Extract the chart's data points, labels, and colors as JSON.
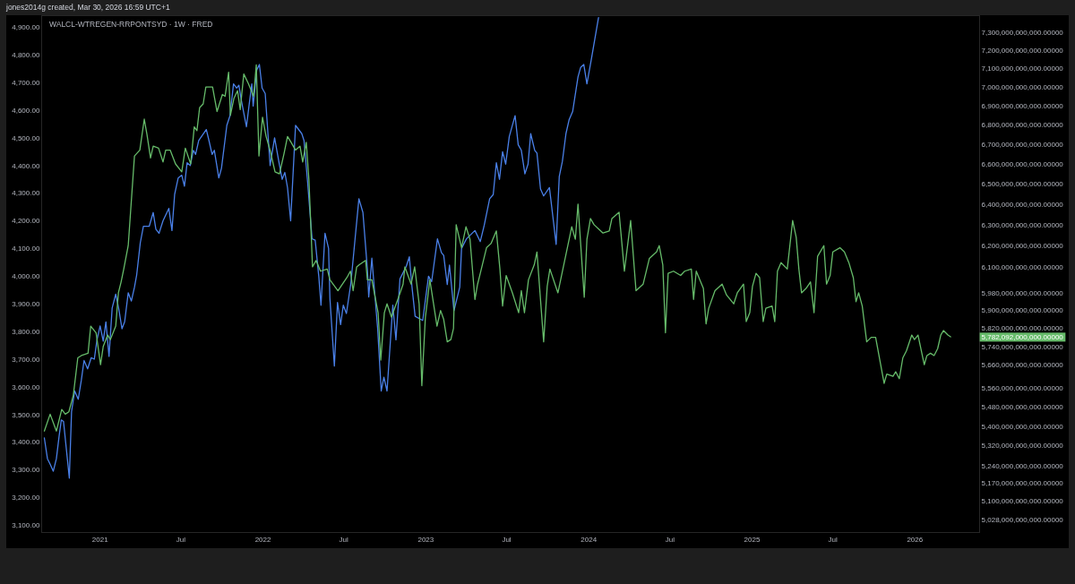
{
  "chart_data": {
    "type": "line",
    "title": "WALCL-WTREGEN-RRPONTSYD · 1W · FRED",
    "annotations": [
      "jones2014g created, Mar 30, 2026 16:59 UTC+1"
    ],
    "log": "y2",
    "xlim": [
      "2020-08-24",
      "2026-05-25"
    ],
    "xticks": [
      {
        "value": "2021",
        "label": "2021"
      },
      {
        "value": "2021-07",
        "label": "Jul"
      },
      {
        "value": "2022",
        "label": "2022"
      },
      {
        "value": "2022-07",
        "label": "Jul"
      },
      {
        "value": "2023",
        "label": "2023"
      },
      {
        "value": "2023-07",
        "label": "Jul"
      },
      {
        "value": "2024",
        "label": "2024"
      },
      {
        "value": "2024-07",
        "label": "Jul"
      },
      {
        "value": "2025",
        "label": "2025"
      },
      {
        "value": "2025-07",
        "label": "Jul"
      },
      {
        "value": "2026",
        "label": "2026"
      }
    ],
    "ylim": [
      3075,
      4940
    ],
    "yticks": [
      {
        "value": 3100,
        "label": "3,100.00"
      },
      {
        "value": 3200,
        "label": "3,200.00"
      },
      {
        "value": 3300,
        "label": "3,300.00"
      },
      {
        "value": 3400,
        "label": "3,400.00"
      },
      {
        "value": 3500,
        "label": "3,500.00"
      },
      {
        "value": 3600,
        "label": "3,600.00"
      },
      {
        "value": 3700,
        "label": "3,700.00"
      },
      {
        "value": 3800,
        "label": "3,800.00"
      },
      {
        "value": 3900,
        "label": "3,900.00"
      },
      {
        "value": 4000,
        "label": "4,000.00"
      },
      {
        "value": 4100,
        "label": "4,100.00"
      },
      {
        "value": 4200,
        "label": "4,200.00"
      },
      {
        "value": 4300,
        "label": "4,300.00"
      },
      {
        "value": 4400,
        "label": "4,400.00"
      },
      {
        "value": 4500,
        "label": "4,500.00"
      },
      {
        "value": 4600,
        "label": "4,600.00"
      },
      {
        "value": 4700,
        "label": "4,700.00"
      },
      {
        "value": 4800,
        "label": "4,800.00"
      },
      {
        "value": 4900,
        "label": "4,900.00"
      }
    ],
    "y2lim": [
      4980000000000.0,
      7390000000000.0
    ],
    "y2ticks": [
      {
        "value": 5028000000000.0,
        "label": "5,028,000,000,000.00000"
      },
      {
        "value": 5100000000000.0,
        "label": "5,100,000,000,000.00000"
      },
      {
        "value": 5170000000000.0,
        "label": "5,170,000,000,000.00000"
      },
      {
        "value": 5240000000000.0,
        "label": "5,240,000,000,000.00000"
      },
      {
        "value": 5320000000000.0,
        "label": "5,320,000,000,000.00000"
      },
      {
        "value": 5400000000000.0,
        "label": "5,400,000,000,000.00000"
      },
      {
        "value": 5480000000000.0,
        "label": "5,480,000,000,000.00000"
      },
      {
        "value": 5560000000000.0,
        "label": "5,560,000,000,000.00000"
      },
      {
        "value": 5660000000000.0,
        "label": "5,660,000,000,000.00000"
      },
      {
        "value": 5740000000000.0,
        "label": "5,740,000,000,000.00000"
      },
      {
        "value": 5782092000000,
        "label": "5,782,092,000,000.00000"
      },
      {
        "value": 5820000000000.0,
        "label": "5,820,000,000,000.00000"
      },
      {
        "value": 5900000000000.0,
        "label": "5,900,000,000,000.00000"
      },
      {
        "value": 5980000000000.0,
        "label": "5,980,000,000,000.00000"
      },
      {
        "value": 6100000000000.0,
        "label": "6,100,000,000,000.00000"
      },
      {
        "value": 6200000000000.0,
        "label": "6,200,000,000,000.00000"
      },
      {
        "value": 6300000000000.0,
        "label": "6,300,000,000,000.00000"
      },
      {
        "value": 6400000000000.0,
        "label": "6,400,000,000,000.00000"
      },
      {
        "value": 6500000000000.0,
        "label": "6,500,000,000,000.00000"
      },
      {
        "value": 6600000000000.0,
        "label": "6,600,000,000,000.00000"
      },
      {
        "value": 6700000000000.0,
        "label": "6,700,000,000,000.00000"
      },
      {
        "value": 6800000000000.0,
        "label": "6,800,000,000,000.00000"
      },
      {
        "value": 6900000000000.0,
        "label": "6,900,000,000,000.00000"
      },
      {
        "value": 7000000000000.0,
        "label": "7,000,000,000,000.00000"
      },
      {
        "value": 7100000000000.0,
        "label": "7,100,000,000,000.00000"
      },
      {
        "value": 7200000000000.0,
        "label": "7,200,000,000,000.00000"
      },
      {
        "value": 7300000000000.0,
        "label": "7,300,000,000,000.00000"
      }
    ],
    "series": [
      {
        "color": "#66bb6a",
        "axis": "y2",
        "x": [
          "2020-08-29",
          "2020-09-11",
          "2020-09-25",
          "2020-10-07",
          "2020-10-15",
          "2020-10-23",
          "2020-11-02",
          "2020-11-12",
          "2020-11-20",
          "2020-12-05",
          "2020-12-11",
          "2020-12-23",
          "2021-01-02",
          "2021-01-08",
          "2021-01-18",
          "2021-01-24",
          "2021-02-05",
          "2021-02-11",
          "2021-02-17",
          "2021-02-23",
          "2021-03-05",
          "2021-03-19",
          "2021-03-31",
          "2021-04-10",
          "2021-04-16",
          "2021-04-24",
          "2021-04-30",
          "2021-05-12",
          "2021-05-22",
          "2021-05-28",
          "2021-06-07",
          "2021-06-19",
          "2021-07-03",
          "2021-07-11",
          "2021-07-23",
          "2021-07-31",
          "2021-08-06",
          "2021-08-12",
          "2021-08-20",
          "2021-08-26",
          "2021-09-10",
          "2021-09-20",
          "2021-10-02",
          "2021-10-08",
          "2021-10-16",
          "2021-10-20",
          "2021-10-28",
          "2021-11-05",
          "2021-11-11",
          "2021-11-19",
          "2021-11-29",
          "2021-12-11",
          "2021-12-17",
          "2021-12-23",
          "2021-12-31",
          "2022-01-08",
          "2022-01-18",
          "2022-01-28",
          "2022-02-07",
          "2022-02-17",
          "2022-02-25",
          "2022-03-05",
          "2022-03-15",
          "2022-03-25",
          "2022-03-31",
          "2022-04-08",
          "2022-04-14",
          "2022-04-22",
          "2022-04-30",
          "2022-05-10",
          "2022-05-25",
          "2022-05-31",
          "2022-06-18",
          "2022-07-08",
          "2022-07-16",
          "2022-07-22",
          "2022-07-30",
          "2022-08-05",
          "2022-08-19",
          "2022-08-23",
          "2022-09-02",
          "2022-09-16",
          "2022-09-22",
          "2022-09-30",
          "2022-10-06",
          "2022-10-16",
          "2022-11-01",
          "2022-11-11",
          "2022-11-15",
          "2022-11-29",
          "2022-12-07",
          "2022-12-17",
          "2022-12-23",
          "2022-12-31",
          "2023-01-10",
          "2023-01-26",
          "2023-02-03",
          "2023-02-10",
          "2023-02-18",
          "2023-02-26",
          "2023-03-04",
          "2023-03-10",
          "2023-03-22",
          "2023-04-01",
          "2023-04-10",
          "2023-04-21",
          "2023-04-27",
          "2023-05-03",
          "2023-05-17",
          "2023-05-27",
          "2023-06-08",
          "2023-06-16",
          "2023-06-22",
          "2023-06-30",
          "2023-07-14",
          "2023-07-28",
          "2023-08-03",
          "2023-08-10",
          "2023-08-19",
          "2023-09-01",
          "2023-09-07",
          "2023-09-22",
          "2023-09-30",
          "2023-10-06",
          "2023-10-24",
          "2023-11-24",
          "2023-12-02",
          "2023-12-08",
          "2023-12-22",
          "2023-12-28",
          "2024-01-05",
          "2024-01-13",
          "2024-02-02",
          "2024-02-16",
          "2024-02-22",
          "2024-03-09",
          "2024-03-21",
          "2024-04-04",
          "2024-04-16",
          "2024-05-02",
          "2024-05-16",
          "2024-06-01",
          "2024-06-07",
          "2024-06-15",
          "2024-06-21",
          "2024-06-27",
          "2024-07-09",
          "2024-07-25",
          "2024-08-03",
          "2024-08-18",
          "2024-08-23",
          "2024-08-29",
          "2024-09-14",
          "2024-09-20",
          "2024-09-26",
          "2024-10-10",
          "2024-10-26",
          "2024-11-05",
          "2024-11-21",
          "2024-11-29",
          "2024-12-13",
          "2024-12-19",
          "2024-12-27",
          "2025-01-02",
          "2025-01-10",
          "2025-01-18",
          "2025-01-26",
          "2025-02-01",
          "2025-02-15",
          "2025-02-21",
          "2025-02-27",
          "2025-03-07",
          "2025-03-21",
          "2025-04-02",
          "2025-04-10",
          "2025-04-16",
          "2025-04-22",
          "2025-05-02",
          "2025-05-12",
          "2025-05-20",
          "2025-05-28",
          "2025-06-11",
          "2025-06-17",
          "2025-06-25",
          "2025-07-01",
          "2025-07-17",
          "2025-07-27",
          "2025-08-06",
          "2025-08-16",
          "2025-08-22",
          "2025-08-28",
          "2025-09-05",
          "2025-09-15",
          "2025-09-25",
          "2025-10-05",
          "2025-10-24",
          "2025-10-30",
          "2025-11-13",
          "2025-11-19",
          "2025-11-27",
          "2025-12-05",
          "2025-12-13",
          "2025-12-25",
          "2025-12-31",
          "2026-01-08",
          "2026-01-22",
          "2026-01-28",
          "2026-02-05",
          "2026-02-13",
          "2026-02-21",
          "2026-02-28",
          "2026-03-06",
          "2026-03-16",
          "2026-03-22"
        ],
        "values": [
          5380000000000.0,
          5450000000000.0,
          5380000000000.0,
          5470000000000.0,
          5450000000000.0,
          5460000000000.0,
          5530000000000.0,
          5690000000000.0,
          5700000000000.0,
          5710000000000.0,
          5830000000000.0,
          5800000000000.0,
          5660000000000.0,
          5740000000000.0,
          5790000000000.0,
          5770000000000.0,
          5830000000000.0,
          5980000000000.0,
          6030000000000.0,
          6090000000000.0,
          6200000000000.0,
          6640000000000.0,
          6670000000000.0,
          6830000000000.0,
          6750000000000.0,
          6630000000000.0,
          6690000000000.0,
          6680000000000.0,
          6610000000000.0,
          6670000000000.0,
          6670000000000.0,
          6600000000000.0,
          6560000000000.0,
          6680000000000.0,
          6600000000000.0,
          6790000000000.0,
          6770000000000.0,
          6890000000000.0,
          6910000000000.0,
          7000000000000.0,
          7000000000000.0,
          6870000000000.0,
          6960000000000.0,
          6950000000000.0,
          7080000000000.0,
          6850000000000.0,
          6940000000000.0,
          6980000000000.0,
          6880000000000.0,
          7070000000000.0,
          7020000000000.0,
          6950000000000.0,
          7120000000000.0,
          6640000000000.0,
          6840000000000.0,
          6740000000000.0,
          6660000000000.0,
          6560000000000.0,
          6550000000000.0,
          6650000000000.0,
          6740000000000.0,
          6710000000000.0,
          6670000000000.0,
          6690000000000.0,
          6610000000000.0,
          6710000000000.0,
          6520000000000.0,
          6100000000000.0,
          6130000000000.0,
          6080000000000.0,
          6090000000000.0,
          6040000000000.0,
          5990000000000.0,
          6050000000000.0,
          6080000000000.0,
          5990000000000.0,
          6100000000000.0,
          6110000000000.0,
          6130000000000.0,
          6040000000000.0,
          6040000000000.0,
          5890000000000.0,
          5680000000000.0,
          5890000000000.0,
          5930000000000.0,
          5870000000000.0,
          5960000000000.0,
          6020000000000.0,
          6100000000000.0,
          6020000000000.0,
          6100000000000.0,
          5930000000000.0,
          5570000000000.0,
          5870000000000.0,
          6040000000000.0,
          5830000000000.0,
          5900000000000.0,
          5860000000000.0,
          5760000000000.0,
          5770000000000.0,
          5820000000000.0,
          6300000000000.0,
          6190000000000.0,
          6290000000000.0,
          6230000000000.0,
          5950000000000.0,
          6020000000000.0,
          6070000000000.0,
          6190000000000.0,
          6210000000000.0,
          6270000000000.0,
          6090000000000.0,
          5920000000000.0,
          6060000000000.0,
          5980000000000.0,
          5890000000000.0,
          5990000000000.0,
          5890000000000.0,
          6040000000000.0,
          6110000000000.0,
          6170000000000.0,
          5760000000000.0,
          6010000000000.0,
          6090000000000.0,
          5980000000000.0,
          6290000000000.0,
          6230000000000.0,
          6400000000000.0,
          5960000000000.0,
          6230000000000.0,
          6330000000000.0,
          6300000000000.0,
          6260000000000.0,
          6270000000000.0,
          6330000000000.0,
          6360000000000.0,
          6080000000000.0,
          6320000000000.0,
          5990000000000.0,
          6020000000000.0,
          6140000000000.0,
          6170000000000.0,
          6200000000000.0,
          6110000000000.0,
          5800000000000.0,
          6070000000000.0,
          6080000000000.0,
          6060000000000.0,
          6080000000000.0,
          6090000000000.0,
          5950000000000.0,
          6080000000000.0,
          6000000000000.0,
          5840000000000.0,
          5910000000000.0,
          5990000000000.0,
          6020000000000.0,
          5970000000000.0,
          5930000000000.0,
          5980000000000.0,
          6020000000000.0,
          5850000000000.0,
          5890000000000.0,
          6010000000000.0,
          6070000000000.0,
          6050000000000.0,
          5850000000000.0,
          5910000000000.0,
          5920000000000.0,
          5850000000000.0,
          6080000000000.0,
          6120000000000.0,
          6090000000000.0,
          6320000000000.0,
          6240000000000.0,
          6090000000000.0,
          5980000000000.0,
          6000000000000.0,
          6030000000000.0,
          5890000000000.0,
          6150000000000.0,
          6200000000000.0,
          6020000000000.0,
          6060000000000.0,
          6170000000000.0,
          6190000000000.0,
          6170000000000.0,
          6120000000000.0,
          6050000000000.0,
          5940000000000.0,
          5980000000000.0,
          5920000000000.0,
          5760000000000.0,
          5780000000000.0,
          5780000000000.0,
          5580000000000.0,
          5620000000000.0,
          5610000000000.0,
          5630000000000.0,
          5600000000000.0,
          5690000000000.0,
          5720000000000.0,
          5790000000000.0,
          5770000000000.0,
          5790000000000.0,
          5660000000000.0,
          5700000000000.0,
          5710000000000.0,
          5700000000000.0,
          5730000000000.0,
          5790000000000.0,
          5810000000000.0,
          5790000000000.0,
          5782092000000
        ]
      },
      {
        "color": "#4a80e8",
        "x": [
          "2020-08-29",
          "2020-09-05",
          "2020-09-11",
          "2020-09-18",
          "2020-09-25",
          "2020-10-01",
          "2020-10-06",
          "2020-10-11",
          "2020-10-24",
          "2020-10-29",
          "2020-11-05",
          "2020-11-13",
          "2020-11-20",
          "2020-11-26",
          "2020-12-04",
          "2020-12-12",
          "2020-12-19",
          "2020-12-25",
          "2021-01-01",
          "2021-01-08",
          "2021-01-14",
          "2021-01-21",
          "2021-01-28",
          "2021-02-05",
          "2021-02-12",
          "2021-02-19",
          "2021-02-25",
          "2021-03-05",
          "2021-03-12",
          "2021-03-19",
          "2021-03-24",
          "2021-04-01",
          "2021-04-08",
          "2021-04-21",
          "2021-04-30",
          "2021-05-06",
          "2021-05-13",
          "2021-05-22",
          "2021-06-04",
          "2021-06-11",
          "2021-06-17",
          "2021-06-25",
          "2021-07-03",
          "2021-07-09",
          "2021-07-15",
          "2021-07-22",
          "2021-07-29",
          "2021-08-03",
          "2021-08-10",
          "2021-08-27",
          "2021-09-02",
          "2021-09-09",
          "2021-09-14",
          "2021-09-24",
          "2021-09-30",
          "2021-10-12",
          "2021-10-19",
          "2021-10-27",
          "2021-11-03",
          "2021-11-08",
          "2021-11-13",
          "2021-11-25",
          "2021-12-01",
          "2021-12-07",
          "2021-12-10",
          "2021-12-18",
          "2021-12-24",
          "2021-12-30",
          "2022-01-06",
          "2022-01-17",
          "2022-01-27",
          "2022-02-06",
          "2022-02-13",
          "2022-02-19",
          "2022-02-25",
          "2022-03-04",
          "2022-03-15",
          "2022-03-29",
          "2022-04-03",
          "2022-04-11",
          "2022-04-21",
          "2022-04-28",
          "2022-05-06",
          "2022-05-11",
          "2022-05-20",
          "2022-05-28",
          "2022-05-31",
          "2022-06-10",
          "2022-06-17",
          "2022-06-24",
          "2022-06-30",
          "2022-07-07",
          "2022-07-17",
          "2022-07-27",
          "2022-08-04",
          "2022-08-13",
          "2022-08-23",
          "2022-08-26",
          "2022-09-02",
          "2022-09-15",
          "2022-09-23",
          "2022-09-29",
          "2022-10-06",
          "2022-10-19",
          "2022-10-26",
          "2022-11-04",
          "2022-11-18",
          "2022-11-25",
          "2022-12-01",
          "2022-12-08",
          "2022-12-25",
          "2023-01-07",
          "2023-01-14",
          "2023-01-27",
          "2023-02-05",
          "2023-02-10",
          "2023-02-18",
          "2023-02-23",
          "2023-03-05",
          "2023-03-18",
          "2023-03-22",
          "2023-04-02",
          "2023-04-21",
          "2023-05-03",
          "2023-05-12",
          "2023-05-24",
          "2023-06-01",
          "2023-06-08",
          "2023-06-15",
          "2023-06-22",
          "2023-06-29",
          "2023-07-07",
          "2023-07-20",
          "2023-07-27",
          "2023-08-03",
          "2023-08-11",
          "2023-08-18",
          "2023-08-24",
          "2023-09-02",
          "2023-09-07",
          "2023-09-15",
          "2023-09-22",
          "2023-10-05",
          "2023-10-20",
          "2023-10-27",
          "2023-11-03",
          "2023-11-11",
          "2023-11-18",
          "2023-11-26",
          "2023-12-08",
          "2023-12-14",
          "2023-12-21",
          "2023-12-28",
          "2024-01-07",
          "2024-01-23"
        ],
        "values": [
          3415,
          3340,
          3320,
          3295,
          3340,
          3420,
          3480,
          3475,
          3270,
          3510,
          3585,
          3555,
          3625,
          3695,
          3665,
          3705,
          3700,
          3770,
          3820,
          3765,
          3835,
          3710,
          3885,
          3935,
          3880,
          3810,
          3835,
          3940,
          3910,
          3960,
          4005,
          4120,
          4180,
          4180,
          4230,
          4170,
          4155,
          4200,
          4245,
          4165,
          4295,
          4355,
          4365,
          4325,
          4410,
          4400,
          4455,
          4440,
          4490,
          4530,
          4490,
          4440,
          4455,
          4355,
          4390,
          4545,
          4580,
          4695,
          4680,
          4690,
          4640,
          4540,
          4620,
          4695,
          4615,
          4745,
          4765,
          4680,
          4660,
          4400,
          4500,
          4410,
          4350,
          4375,
          4320,
          4200,
          4545,
          4515,
          4490,
          4340,
          4135,
          4130,
          4000,
          3895,
          4155,
          4100,
          3920,
          3675,
          3905,
          3825,
          3895,
          3865,
          3975,
          4145,
          4280,
          4230,
          4025,
          3925,
          4065,
          3810,
          3585,
          3635,
          3585,
          3895,
          3770,
          3990,
          4035,
          4070,
          3960,
          3855,
          3840,
          4000,
          3980,
          4135,
          4085,
          4075,
          3970,
          4040,
          3875,
          3960,
          4100,
          4135,
          4165,
          4125,
          4185,
          4280,
          4295,
          4410,
          4350,
          4450,
          4405,
          4505,
          4580,
          4475,
          4455,
          4370,
          4405,
          4515,
          4455,
          4445,
          4315,
          4290,
          4320,
          4115,
          4360,
          4415,
          4515,
          4565,
          4595,
          4720,
          4755,
          4765,
          4695,
          4785,
          4935
        ]
      }
    ]
  }
}
